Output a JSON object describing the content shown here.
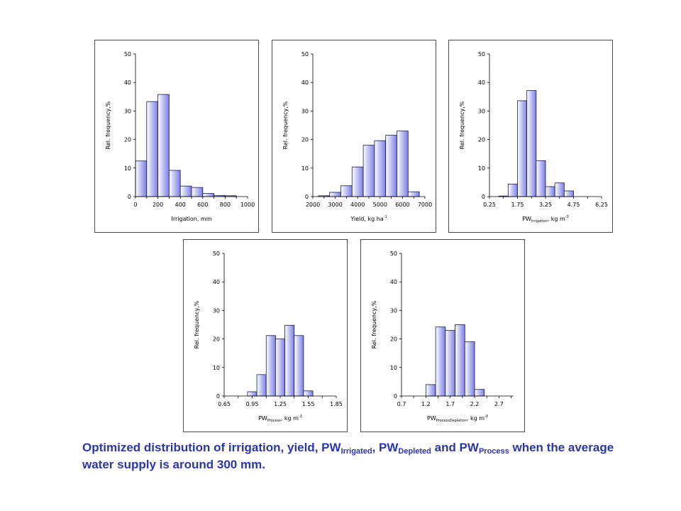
{
  "caption": {
    "p1": "Optimized distribution of irrigation, yield, PW",
    "s1": "Irrigated",
    "p2": ", PW",
    "s2": "Depleted",
    "p3": " and PW",
    "s3": "Process",
    "p4": " when the average water supply is around 300 mm."
  },
  "colors": {
    "bar_light": "#ffffff",
    "bar_dark": "#7a7de6",
    "bar_stroke": "#1a1a4a",
    "caption": "#2a35b0"
  },
  "chart_data": [
    {
      "type": "bar",
      "ylabel": "Rel. frequency,%",
      "xlabel_main": "Irrigation, mm",
      "xlabel_sub": "",
      "xlabel_unit": "",
      "xlabel_sup": "",
      "ylim": [
        0,
        50
      ],
      "yticks": [
        0,
        10,
        20,
        30,
        40,
        50
      ],
      "xlim": [
        0,
        1000
      ],
      "xticks": [
        0,
        200,
        400,
        600,
        800,
        1000
      ],
      "bin_width": 100,
      "bins": [
        50,
        150,
        250,
        350,
        450,
        550,
        650,
        750,
        850
      ],
      "values": [
        12.5,
        33.3,
        35.8,
        9.2,
        3.7,
        3.2,
        1.1,
        0.4,
        0.3
      ]
    },
    {
      "type": "bar",
      "ylabel": "Rel. frequency,%",
      "xlabel_main": "Yield, kg ha",
      "xlabel_sub": "",
      "xlabel_unit": "",
      "xlabel_sup": "-1",
      "ylim": [
        0,
        50
      ],
      "yticks": [
        0,
        10,
        20,
        30,
        40,
        50
      ],
      "xlim": [
        2000,
        7000
      ],
      "xticks": [
        2000,
        3000,
        4000,
        5000,
        6000,
        7000
      ],
      "bin_width": 500,
      "bins": [
        2500,
        3000,
        3500,
        4000,
        4500,
        5000,
        5500,
        6000,
        6500
      ],
      "values": [
        0.3,
        1.5,
        3.8,
        10.4,
        18.0,
        19.6,
        21.5,
        23.0,
        1.7
      ]
    },
    {
      "type": "bar",
      "ylabel": "Rel. frequency,%",
      "xlabel_main": "PW",
      "xlabel_sub": "Irrigation",
      "xlabel_unit": ", kg m",
      "xlabel_sup": "-3",
      "ylim": [
        0,
        50
      ],
      "yticks": [
        0,
        10,
        20,
        30,
        40,
        50
      ],
      "xlim": [
        0.25,
        6.25
      ],
      "xticks": [
        0.25,
        1.75,
        3.25,
        4.75,
        6.25
      ],
      "bin_width": 0.5,
      "bins": [
        1.0,
        1.5,
        2.0,
        2.5,
        3.0,
        3.5,
        4.0,
        4.5,
        5.0,
        5.5
      ],
      "values": [
        0.2,
        4.4,
        33.6,
        37.2,
        12.6,
        3.5,
        4.8,
        2.0,
        0,
        0
      ]
    },
    {
      "type": "bar",
      "ylabel": "Rel. frequency,%",
      "xlabel_main": "PW",
      "xlabel_sub": "Process",
      "xlabel_unit": ", kg m",
      "xlabel_sup": "-3",
      "ylim": [
        0,
        50
      ],
      "yticks": [
        0,
        10,
        20,
        30,
        40,
        50
      ],
      "xlim": [
        0.65,
        1.85
      ],
      "xticks": [
        0.65,
        0.95,
        1.25,
        1.55,
        1.85
      ],
      "bin_width": 0.1,
      "bins": [
        0.75,
        0.85,
        0.95,
        1.05,
        1.15,
        1.25,
        1.35,
        1.45,
        1.55,
        1.65,
        1.75
      ],
      "values": [
        0,
        0,
        1.5,
        7.5,
        21.2,
        20.0,
        24.8,
        21.2,
        1.8,
        0,
        0
      ]
    },
    {
      "type": "bar",
      "ylabel": "Rel. frequency,%",
      "xlabel_main": "PW",
      "xlabel_sub": "ProcessDepletion",
      "xlabel_unit": ", kg m",
      "xlabel_sup": "-3",
      "ylim": [
        0,
        50
      ],
      "yticks": [
        0,
        10,
        20,
        30,
        40,
        50
      ],
      "xlim": [
        0.7,
        3.0
      ],
      "xticks": [
        0.7,
        1.2,
        1.7,
        2.2,
        2.7
      ],
      "xtick_labels": [
        "0.7",
        "1.2",
        "1.7",
        "2.2",
        "2.7"
      ],
      "bin_width": 0.2,
      "bins": [
        0.9,
        1.1,
        1.3,
        1.5,
        1.7,
        1.9,
        2.1,
        2.3,
        2.5,
        2.7
      ],
      "values": [
        0,
        0,
        4.0,
        24.2,
        23.0,
        25.0,
        19.0,
        2.3,
        0,
        0
      ]
    }
  ]
}
